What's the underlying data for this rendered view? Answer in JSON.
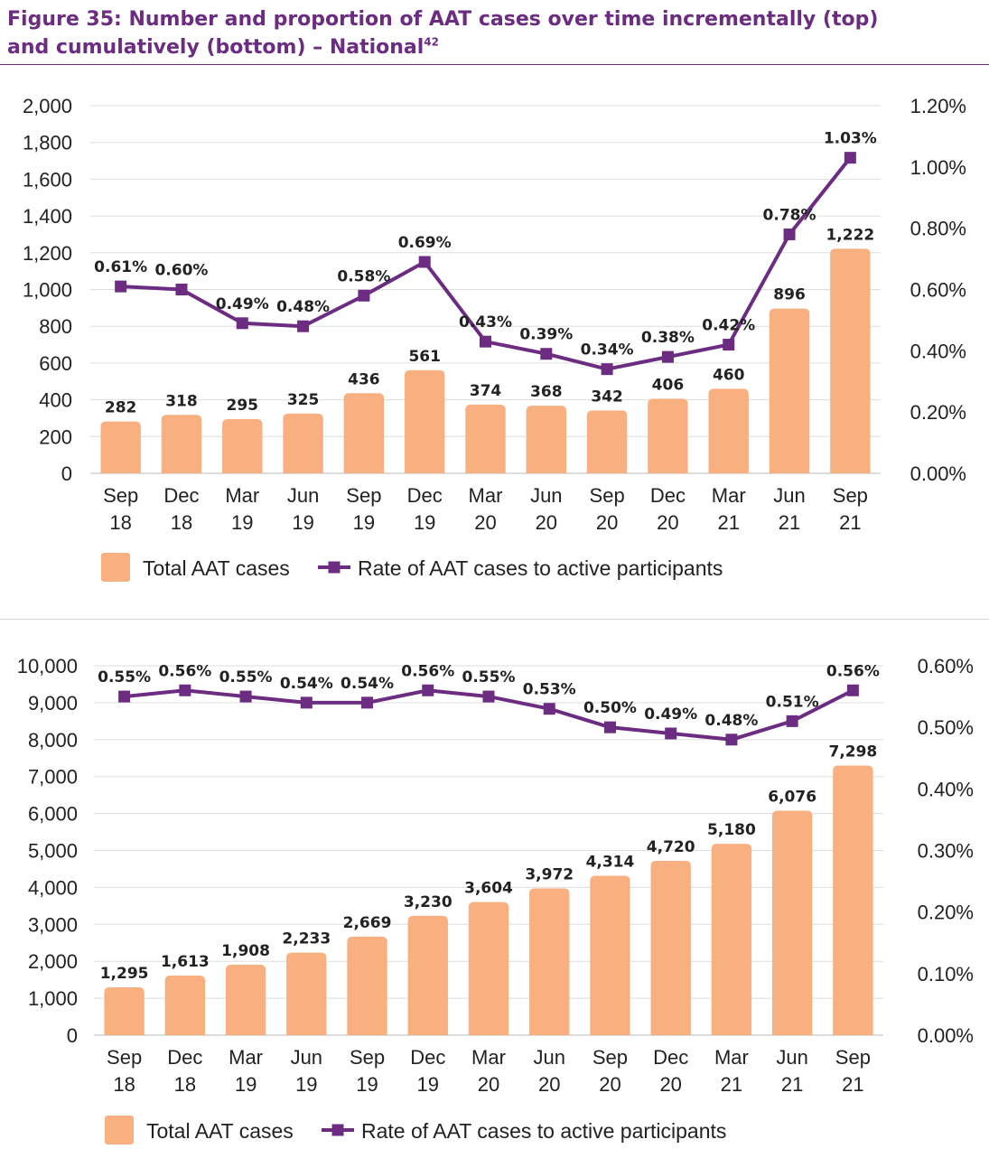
{
  "figure": {
    "title_line1": "Figure 35: Number and proportion of AAT cases over time incrementally (top)",
    "title_line2": "and cumulatively (bottom) – National",
    "footnote_ref": "42"
  },
  "colors": {
    "bar": "#f8b080",
    "line": "#6b2c81",
    "grid": "#dddddd",
    "title": "#6b2c81"
  },
  "legend": {
    "bar_label": "Total AAT cases",
    "line_label": "Rate of AAT cases to active participants"
  },
  "chart_data": [
    {
      "type": "bar",
      "categories": [
        [
          "Sep",
          "18"
        ],
        [
          "Dec",
          "18"
        ],
        [
          "Mar",
          "19"
        ],
        [
          "Jun",
          "19"
        ],
        [
          "Sep",
          "19"
        ],
        [
          "Dec",
          "19"
        ],
        [
          "Mar",
          "20"
        ],
        [
          "Jun",
          "20"
        ],
        [
          "Sep",
          "20"
        ],
        [
          "Dec",
          "20"
        ],
        [
          "Mar",
          "21"
        ],
        [
          "Jun",
          "21"
        ],
        [
          "Sep",
          "21"
        ]
      ],
      "series": [
        {
          "name": "Total AAT cases",
          "type": "bar",
          "values": [
            282,
            318,
            295,
            325,
            436,
            561,
            374,
            368,
            342,
            406,
            460,
            896,
            1222
          ],
          "labels": [
            "282",
            "318",
            "295",
            "325",
            "436",
            "561",
            "374",
            "368",
            "342",
            "406",
            "460",
            "896",
            "1,222"
          ]
        },
        {
          "name": "Rate of AAT cases to active participants",
          "type": "line",
          "axis": "right",
          "values": [
            0.61,
            0.6,
            0.49,
            0.48,
            0.58,
            0.69,
            0.43,
            0.39,
            0.34,
            0.38,
            0.42,
            0.78,
            1.03
          ],
          "labels": [
            "0.61%",
            "0.60%",
            "0.49%",
            "0.48%",
            "0.58%",
            "0.69%",
            "0.43%",
            "0.39%",
            "0.34%",
            "0.38%",
            "0.42%",
            "0.78%",
            "1.03%"
          ]
        }
      ],
      "ylim": [
        0,
        2000
      ],
      "yticks": [
        "0",
        "200",
        "400",
        "600",
        "800",
        "1,000",
        "1,200",
        "1,400",
        "1,600",
        "1,800",
        "2,000"
      ],
      "y2lim": [
        0,
        1.2
      ],
      "y2ticks": [
        "0.00%",
        "0.20%",
        "0.40%",
        "0.60%",
        "0.80%",
        "1.00%",
        "1.20%"
      ],
      "grid": true,
      "legend_position": "bottom"
    },
    {
      "type": "bar",
      "categories": [
        [
          "Sep",
          "18"
        ],
        [
          "Dec",
          "18"
        ],
        [
          "Mar",
          "19"
        ],
        [
          "Jun",
          "19"
        ],
        [
          "Sep",
          "19"
        ],
        [
          "Dec",
          "19"
        ],
        [
          "Mar",
          "20"
        ],
        [
          "Jun",
          "20"
        ],
        [
          "Sep",
          "20"
        ],
        [
          "Dec",
          "20"
        ],
        [
          "Mar",
          "21"
        ],
        [
          "Jun",
          "21"
        ],
        [
          "Sep",
          "21"
        ]
      ],
      "series": [
        {
          "name": "Total AAT cases",
          "type": "bar",
          "values": [
            1295,
            1613,
            1908,
            2233,
            2669,
            3230,
            3604,
            3972,
            4314,
            4720,
            5180,
            6076,
            7298
          ],
          "labels": [
            "1,295",
            "1,613",
            "1,908",
            "2,233",
            "2,669",
            "3,230",
            "3,604",
            "3,972",
            "4,314",
            "4,720",
            "5,180",
            "6,076",
            "7,298"
          ]
        },
        {
          "name": "Rate of AAT cases to active participants",
          "type": "line",
          "axis": "right",
          "values": [
            0.55,
            0.56,
            0.55,
            0.54,
            0.54,
            0.56,
            0.55,
            0.53,
            0.5,
            0.49,
            0.48,
            0.51,
            0.56
          ],
          "labels": [
            "0.55%",
            "0.56%",
            "0.55%",
            "0.54%",
            "0.54%",
            "0.56%",
            "0.55%",
            "0.53%",
            "0.50%",
            "0.49%",
            "0.48%",
            "0.51%",
            "0.56%"
          ]
        }
      ],
      "ylim": [
        0,
        10000
      ],
      "yticks": [
        "0",
        "1,000",
        "2,000",
        "3,000",
        "4,000",
        "5,000",
        "6,000",
        "7,000",
        "8,000",
        "9,000",
        "10,000"
      ],
      "y2lim": [
        0,
        0.6
      ],
      "y2ticks": [
        "0.00%",
        "0.10%",
        "0.20%",
        "0.30%",
        "0.40%",
        "0.50%",
        "0.60%"
      ],
      "grid": true,
      "legend_position": "bottom"
    }
  ]
}
